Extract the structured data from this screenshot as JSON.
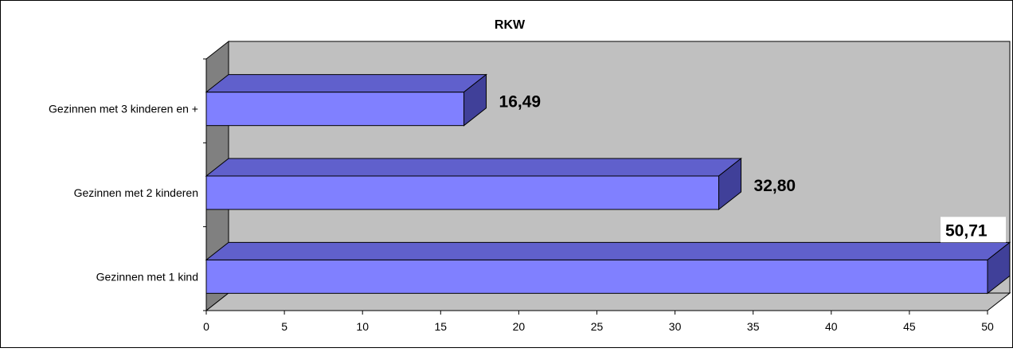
{
  "chart_data": {
    "type": "bar",
    "orientation": "horizontal",
    "style": "3d",
    "title": "RKW",
    "categories": [
      "Gezinnen met 3 kinderen en +",
      "Gezinnen met 2 kinderen",
      "Gezinnen met 1 kind"
    ],
    "values": [
      16.49,
      32.8,
      50.71
    ],
    "value_labels": [
      "16,49",
      "32,80",
      "50,71"
    ],
    "xlim": [
      0,
      50
    ],
    "x_ticks": [
      "0",
      "5",
      "10",
      "15",
      "20",
      "25",
      "30",
      "35",
      "40",
      "45",
      "50"
    ],
    "grid": false,
    "legend": "none",
    "colors": {
      "bar_front": "#8080ff",
      "bar_top": "#6060cc",
      "bar_side": "#404099",
      "wall": "#c0c0c0",
      "side_wall": "#808080",
      "floor": "#c0c0c0"
    }
  }
}
